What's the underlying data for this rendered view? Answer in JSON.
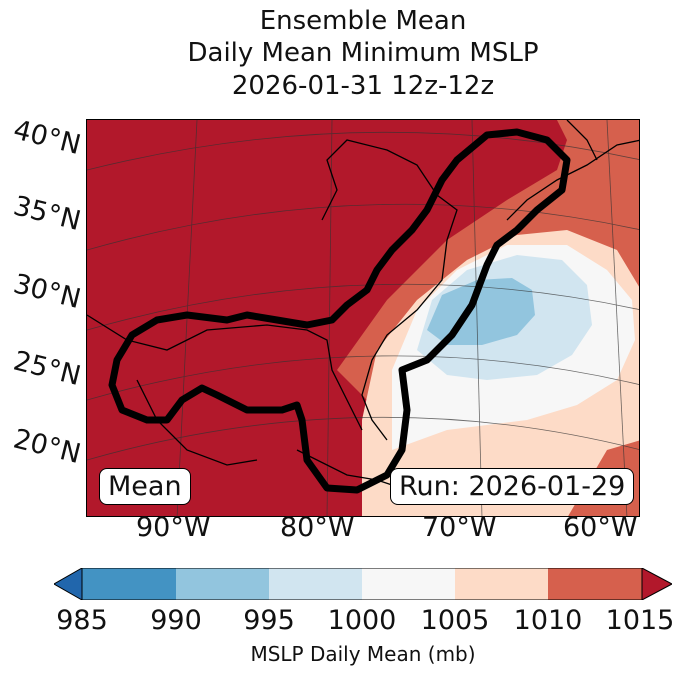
{
  "title_lines": [
    "Ensemble Mean",
    "Daily Mean Minimum MSLP",
    "2026-01-31 12z-12z"
  ],
  "lat_labels": [
    "40°N",
    "35°N",
    "30°N",
    "25°N",
    "20°N"
  ],
  "lon_labels": [
    "90°W",
    "80°W",
    "70°W",
    "60°W"
  ],
  "legend_box": "Mean",
  "run_box": "Run: 2026-01-29",
  "colorbar": {
    "ticks": [
      "985",
      "990",
      "995",
      "1000",
      "1005",
      "1010",
      "1015"
    ],
    "colors": [
      "#2166ac",
      "#4393c3",
      "#92c5de",
      "#d1e5f0",
      "#f7f7f7",
      "#fddbc7",
      "#d6604d",
      "#b2182b"
    ],
    "label": "MSLP Daily Mean (mb)"
  },
  "pressure_field": {
    "units": "mb",
    "center_lat": 29.5,
    "center_lon": -69,
    "min_value": 992
  }
}
